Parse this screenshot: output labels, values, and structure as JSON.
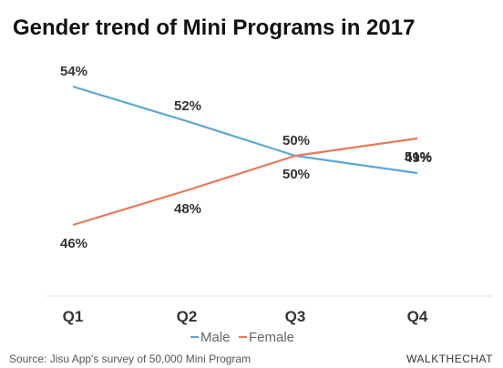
{
  "chart_data": {
    "type": "line",
    "title": "Gender trend of Mini Programs in 2017",
    "categories": [
      "Q1",
      "Q2",
      "Q3",
      "Q4"
    ],
    "series": [
      {
        "name": "Male",
        "values": [
          54,
          52,
          50,
          49
        ],
        "labels": [
          "54%",
          "52%",
          "50%",
          "49%"
        ],
        "color": "#5ba8d6"
      },
      {
        "name": "Female",
        "values": [
          46,
          48,
          50,
          51
        ],
        "labels": [
          "46%",
          "48%",
          "50%",
          "51%"
        ],
        "color": "#e8795a"
      }
    ],
    "xlabel": "",
    "ylabel": "",
    "grid": false,
    "legend_position": "bottom-center"
  },
  "footer": {
    "source": "Source: Jisu App's survey of 50,000 Mini Program",
    "brand": "WALKTHECHAT"
  }
}
